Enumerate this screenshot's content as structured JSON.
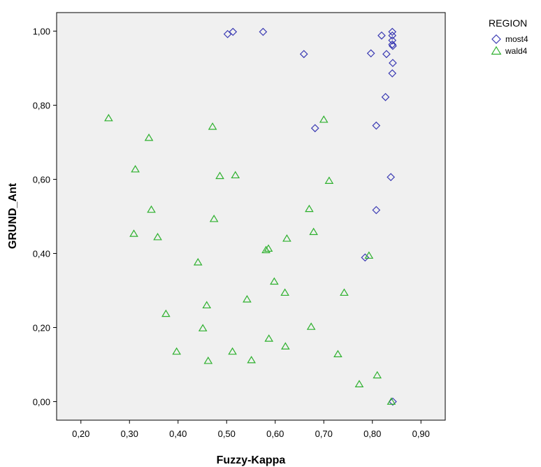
{
  "chart_data": {
    "type": "scatter",
    "xlabel": "Fuzzy-Kappa",
    "ylabel": "GRUND_Ant",
    "xlim": [
      0.15,
      0.95
    ],
    "ylim": [
      -0.05,
      1.05
    ],
    "x_ticks": [
      0.2,
      0.3,
      0.4,
      0.5,
      0.6,
      0.7,
      0.8,
      0.9
    ],
    "x_tick_labels": [
      "0,20",
      "0,30",
      "0,40",
      "0,50",
      "0,60",
      "0,70",
      "0,80",
      "0,90"
    ],
    "y_ticks": [
      0.0,
      0.2,
      0.4,
      0.6,
      0.8,
      1.0
    ],
    "y_tick_labels": [
      "0,00",
      "0,20",
      "0,40",
      "0,60",
      "0,80",
      "1,00"
    ],
    "grid": false,
    "plot_background": "#f0f0f0",
    "legend": {
      "title": "REGION",
      "placement": "top-right outside"
    },
    "series": [
      {
        "name": "most4",
        "marker": "diamond",
        "color": "#3b3bb3",
        "points": [
          [
            0.502,
            0.992
          ],
          [
            0.513,
            0.998
          ],
          [
            0.575,
            0.998
          ],
          [
            0.659,
            0.938
          ],
          [
            0.682,
            0.738
          ],
          [
            0.797,
            0.94
          ],
          [
            0.819,
            0.988
          ],
          [
            0.829,
            0.938
          ],
          [
            0.841,
            0.998
          ],
          [
            0.841,
            0.988
          ],
          [
            0.841,
            0.975
          ],
          [
            0.841,
            0.964
          ],
          [
            0.842,
            0.96
          ],
          [
            0.842,
            0.914
          ],
          [
            0.841,
            0.886
          ],
          [
            0.827,
            0.822
          ],
          [
            0.808,
            0.745
          ],
          [
            0.838,
            0.606
          ],
          [
            0.808,
            0.517
          ],
          [
            0.785,
            0.389
          ],
          [
            0.842,
            0.0
          ]
        ]
      },
      {
        "name": "wald4",
        "marker": "triangle",
        "color": "#2db02d",
        "points": [
          [
            0.257,
            0.765
          ],
          [
            0.34,
            0.712
          ],
          [
            0.471,
            0.742
          ],
          [
            0.7,
            0.761
          ],
          [
            0.312,
            0.627
          ],
          [
            0.486,
            0.609
          ],
          [
            0.518,
            0.611
          ],
          [
            0.711,
            0.596
          ],
          [
            0.345,
            0.518
          ],
          [
            0.474,
            0.493
          ],
          [
            0.67,
            0.52
          ],
          [
            0.309,
            0.453
          ],
          [
            0.358,
            0.444
          ],
          [
            0.679,
            0.458
          ],
          [
            0.624,
            0.44
          ],
          [
            0.586,
            0.413
          ],
          [
            0.581,
            0.409
          ],
          [
            0.793,
            0.394
          ],
          [
            0.441,
            0.376
          ],
          [
            0.598,
            0.324
          ],
          [
            0.62,
            0.294
          ],
          [
            0.742,
            0.294
          ],
          [
            0.542,
            0.276
          ],
          [
            0.459,
            0.26
          ],
          [
            0.375,
            0.237
          ],
          [
            0.451,
            0.198
          ],
          [
            0.674,
            0.202
          ],
          [
            0.587,
            0.17
          ],
          [
            0.621,
            0.149
          ],
          [
            0.397,
            0.135
          ],
          [
            0.512,
            0.135
          ],
          [
            0.729,
            0.128
          ],
          [
            0.462,
            0.11
          ],
          [
            0.551,
            0.112
          ],
          [
            0.81,
            0.071
          ],
          [
            0.773,
            0.047
          ],
          [
            0.839,
            0.0
          ]
        ]
      }
    ]
  }
}
